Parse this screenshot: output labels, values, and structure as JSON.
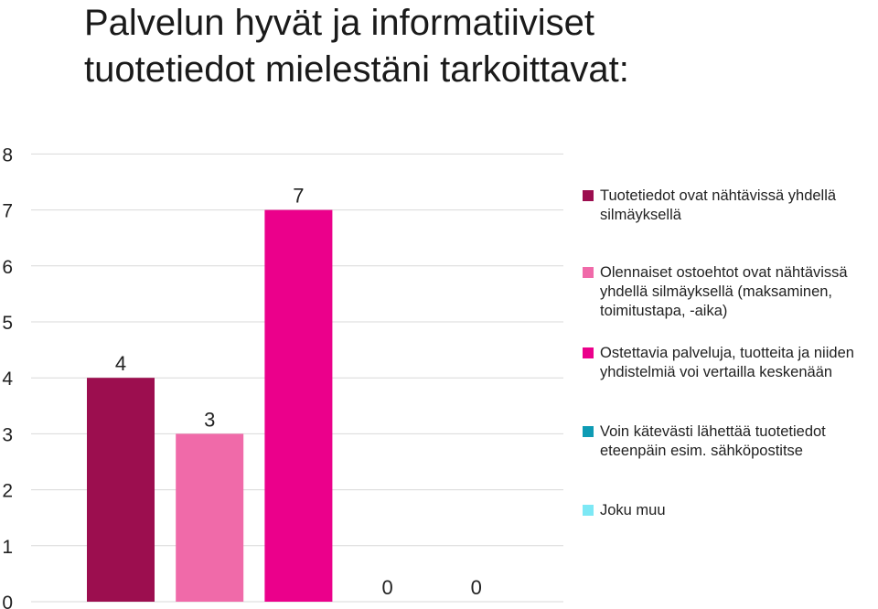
{
  "title": {
    "line1": "Palvelun hyvät ja informatiiviset",
    "line2": "tuotetiedot mielestäni tarkoittavat:"
  },
  "chart_data": {
    "type": "bar",
    "ylim": [
      0,
      8
    ],
    "y_ticks": [
      "0",
      "1",
      "2",
      "3",
      "4",
      "5",
      "6",
      "7",
      "8"
    ],
    "grid": true,
    "legend_position": "right",
    "series": [
      {
        "name": "Tuotetiedot ovat nähtävissä yhdellä silmäyksellä",
        "value": 4,
        "label": "4",
        "color": "#9c0e4f"
      },
      {
        "name": "Olennaiset ostoehtot ovat nähtävissä yhdellä silmäyksellä (maksaminen, toimitustapa, -aika)",
        "value": 3,
        "label": "3",
        "color": "#f06aa9"
      },
      {
        "name": "Ostettavia palveluja, tuotteita ja niiden yhdistelmiä voi vertailla keskenään",
        "value": 7,
        "label": "7",
        "color": "#eb008b"
      },
      {
        "name": "Voin kätevästi lähettää tuotetiedot eteenpäin esim. sähköpostitse",
        "value": 0,
        "label": "0",
        "color": "#0e9bb4"
      },
      {
        "name": "Joku muu",
        "value": 0,
        "label": "0",
        "color": "#7de8f5"
      }
    ]
  }
}
